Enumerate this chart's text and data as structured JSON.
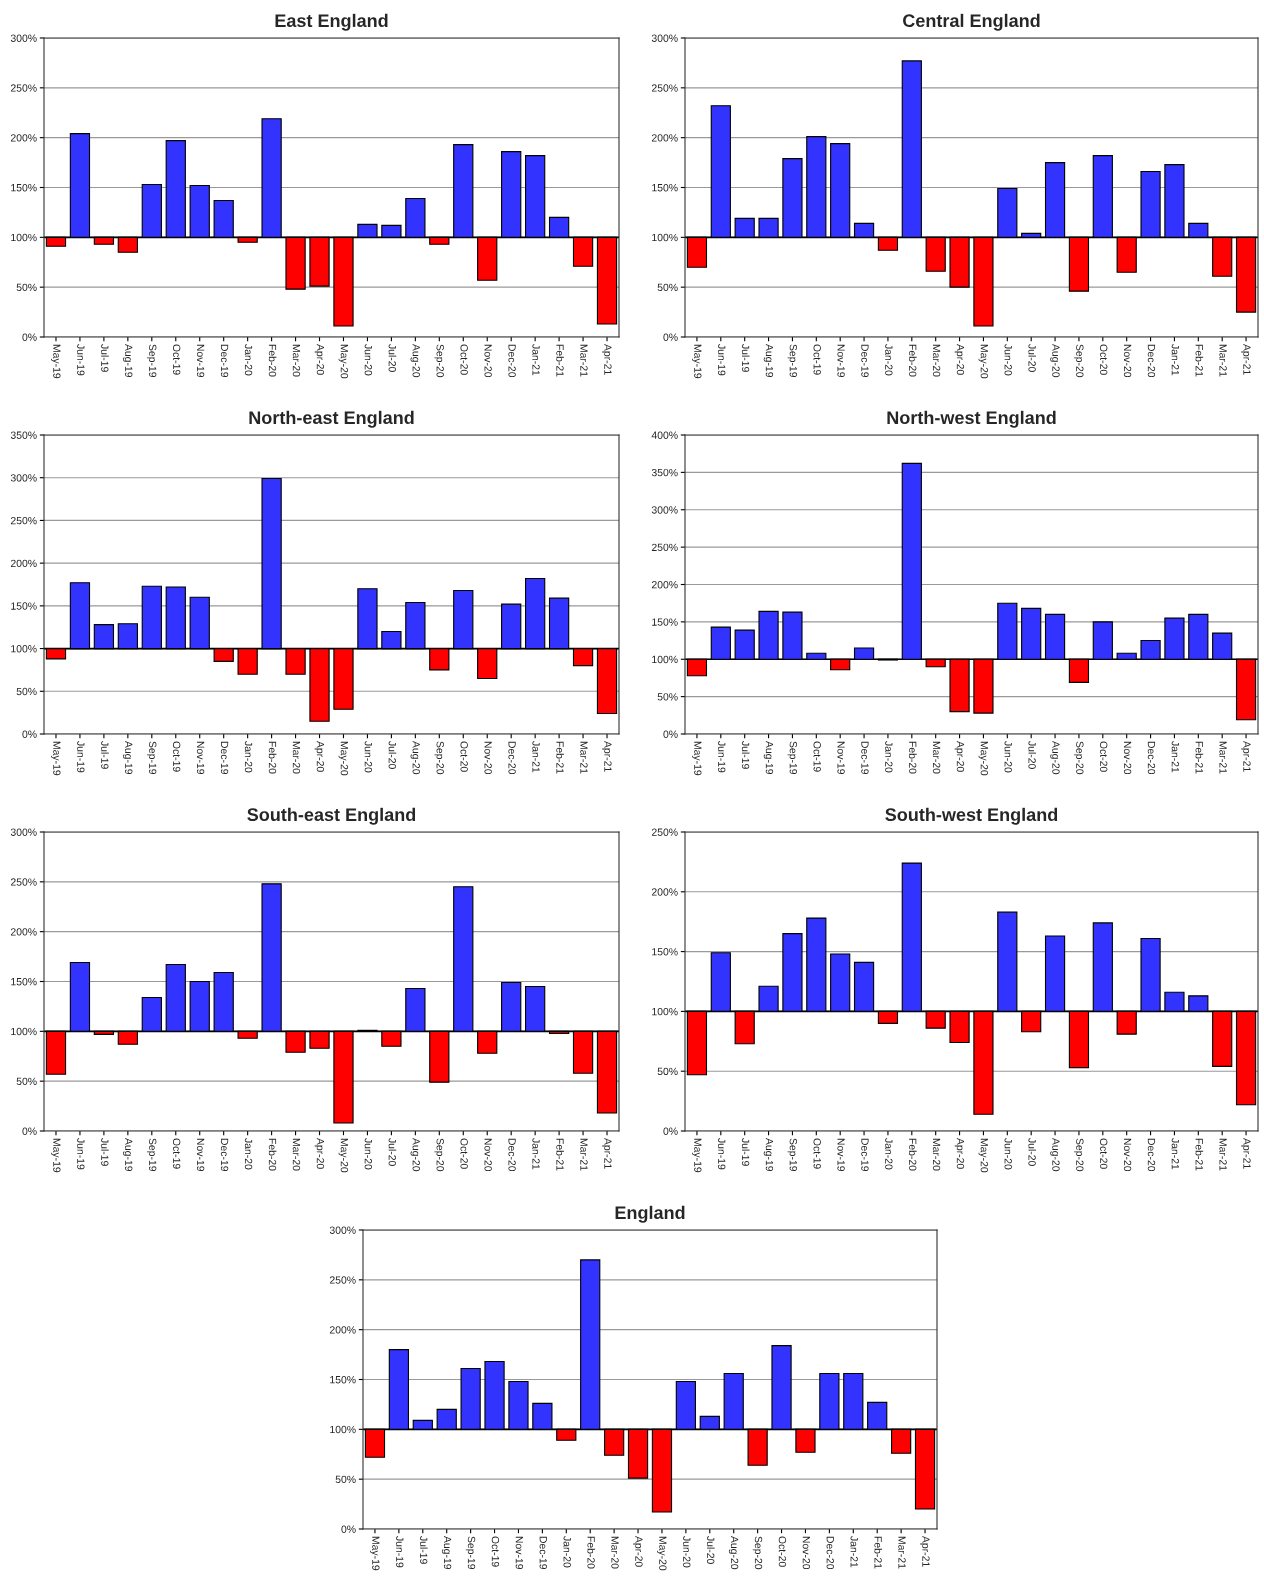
{
  "chart_data": [
    {
      "type": "bar",
      "title": "East England",
      "categories": [
        "May-19",
        "Jun-19",
        "Jul-19",
        "Aug-19",
        "Sep-19",
        "Oct-19",
        "Nov-19",
        "Dec-19",
        "Jan-20",
        "Feb-20",
        "Mar-20",
        "Apr-20",
        "May-20",
        "Jun-20",
        "Jul-20",
        "Aug-20",
        "Sep-20",
        "Oct-20",
        "Nov-20",
        "Dec-20",
        "Jan-21",
        "Feb-21",
        "Mar-21",
        "Apr-21"
      ],
      "base": [
        100,
        100,
        100,
        100,
        100,
        100,
        100,
        100,
        100,
        100,
        100,
        100,
        100,
        100,
        100,
        100,
        100,
        100,
        100,
        100,
        100,
        100,
        100,
        100
      ],
      "values": [
        -9,
        104,
        -7,
        -15,
        53,
        97,
        52,
        37,
        -5,
        119,
        -52,
        -49,
        -89,
        13,
        12,
        39,
        -7,
        93,
        -43,
        86,
        82,
        20,
        -29,
        -87
      ],
      "colors": [
        "#ff0000",
        "#3333ff",
        "#ff0000",
        "#ff0000",
        "#3333ff",
        "#3333ff",
        "#3333ff",
        "#3333ff",
        "#ff0000",
        "#3333ff",
        "#ff0000",
        "#ff0000",
        "#ff0000",
        "#3333ff",
        "#3333ff",
        "#3333ff",
        "#ff0000",
        "#3333ff",
        "#ff0000",
        "#3333ff",
        "#3333ff",
        "#3333ff",
        "#ff0000",
        "#ff0000"
      ],
      "ylim": [
        0,
        300
      ],
      "yticks": [
        {
          "value": 0,
          "label": "0%"
        },
        {
          "value": 50,
          "label": "50%"
        },
        {
          "value": 100,
          "label": "100%"
        },
        {
          "value": 150,
          "label": "150%"
        },
        {
          "value": 200,
          "label": "200%"
        },
        {
          "value": 250,
          "label": "250%"
        },
        {
          "value": 300,
          "label": "300%"
        }
      ],
      "grid": "y",
      "ref_lines": [
        {
          "axis": "y",
          "value": 100,
          "color": "#000000"
        }
      ]
    },
    {
      "type": "bar",
      "title": "Central England",
      "categories": [
        "May-19",
        "Jun-19",
        "Jul-19",
        "Aug-19",
        "Sep-19",
        "Oct-19",
        "Nov-19",
        "Dec-19",
        "Jan-20",
        "Feb-20",
        "Mar-20",
        "Apr-20",
        "May-20",
        "Jun-20",
        "Jul-20",
        "Aug-20",
        "Sep-20",
        "Oct-20",
        "Nov-20",
        "Dec-20",
        "Jan-21",
        "Feb-21",
        "Mar-21",
        "Apr-21"
      ],
      "base": [
        100,
        100,
        100,
        100,
        100,
        100,
        100,
        100,
        100,
        100,
        100,
        100,
        100,
        100,
        100,
        100,
        100,
        100,
        100,
        100,
        100,
        100,
        100,
        100
      ],
      "values": [
        -30,
        132,
        19,
        19,
        79,
        101,
        94,
        14,
        -13,
        177,
        -34,
        -50,
        -89,
        49,
        4,
        75,
        -54,
        82,
        -35,
        66,
        73,
        14,
        -39,
        -75
      ],
      "colors": [
        "#ff0000",
        "#3333ff",
        "#3333ff",
        "#3333ff",
        "#3333ff",
        "#3333ff",
        "#3333ff",
        "#3333ff",
        "#ff0000",
        "#3333ff",
        "#ff0000",
        "#ff0000",
        "#ff0000",
        "#3333ff",
        "#3333ff",
        "#3333ff",
        "#ff0000",
        "#3333ff",
        "#ff0000",
        "#3333ff",
        "#3333ff",
        "#3333ff",
        "#ff0000",
        "#ff0000"
      ],
      "ylim": [
        0,
        300
      ],
      "yticks": [
        {
          "value": 0,
          "label": "0%"
        },
        {
          "value": 50,
          "label": "50%"
        },
        {
          "value": 100,
          "label": "100%"
        },
        {
          "value": 150,
          "label": "150%"
        },
        {
          "value": 200,
          "label": "200%"
        },
        {
          "value": 250,
          "label": "250%"
        },
        {
          "value": 300,
          "label": "300%"
        }
      ],
      "grid": "y",
      "ref_lines": [
        {
          "axis": "y",
          "value": 100,
          "color": "#000000"
        }
      ]
    },
    {
      "type": "bar",
      "title": "North-east England",
      "categories": [
        "May-19",
        "Jun-19",
        "Jul-19",
        "Aug-19",
        "Sep-19",
        "Oct-19",
        "Nov-19",
        "Dec-19",
        "Jan-20",
        "Feb-20",
        "Mar-20",
        "Apr-20",
        "May-20",
        "Jun-20",
        "Jul-20",
        "Aug-20",
        "Sep-20",
        "Oct-20",
        "Nov-20",
        "Dec-20",
        "Jan-21",
        "Feb-21",
        "Mar-21",
        "Apr-21"
      ],
      "base": [
        100,
        100,
        100,
        100,
        100,
        100,
        100,
        100,
        100,
        100,
        100,
        100,
        100,
        100,
        100,
        100,
        100,
        100,
        100,
        100,
        100,
        100,
        100,
        100
      ],
      "values": [
        -12,
        77,
        28,
        29,
        73,
        72,
        60,
        -15,
        -30,
        199,
        -30,
        -85,
        -71,
        70,
        20,
        54,
        -25,
        68,
        -35,
        52,
        82,
        59,
        -20,
        -76
      ],
      "colors": [
        "#ff0000",
        "#3333ff",
        "#3333ff",
        "#3333ff",
        "#3333ff",
        "#3333ff",
        "#3333ff",
        "#ff0000",
        "#ff0000",
        "#3333ff",
        "#ff0000",
        "#ff0000",
        "#ff0000",
        "#3333ff",
        "#3333ff",
        "#3333ff",
        "#ff0000",
        "#3333ff",
        "#ff0000",
        "#3333ff",
        "#3333ff",
        "#3333ff",
        "#ff0000",
        "#ff0000"
      ],
      "ylim": [
        0,
        350
      ],
      "yticks": [
        {
          "value": 0,
          "label": "0%"
        },
        {
          "value": 50,
          "label": "50%"
        },
        {
          "value": 100,
          "label": "100%"
        },
        {
          "value": 150,
          "label": "150%"
        },
        {
          "value": 200,
          "label": "200%"
        },
        {
          "value": 250,
          "label": "250%"
        },
        {
          "value": 300,
          "label": "300%"
        },
        {
          "value": 350,
          "label": "350%"
        }
      ],
      "grid": "y",
      "ref_lines": [
        {
          "axis": "y",
          "value": 100,
          "color": "#000000"
        }
      ]
    },
    {
      "type": "bar",
      "title": "North-west England",
      "categories": [
        "May-19",
        "Jun-19",
        "Jul-19",
        "Aug-19",
        "Sep-19",
        "Oct-19",
        "Nov-19",
        "Dec-19",
        "Jan-20",
        "Feb-20",
        "Mar-20",
        "Apr-20",
        "May-20",
        "Jun-20",
        "Jul-20",
        "Aug-20",
        "Sep-20",
        "Oct-20",
        "Nov-20",
        "Dec-20",
        "Jan-21",
        "Feb-21",
        "Mar-21",
        "Apr-21"
      ],
      "base": [
        100,
        100,
        100,
        100,
        100,
        100,
        100,
        100,
        100,
        100,
        100,
        100,
        100,
        100,
        100,
        100,
        100,
        100,
        100,
        100,
        100,
        100,
        100,
        100
      ],
      "values": [
        -22,
        43,
        39,
        64,
        63,
        8,
        -14,
        15,
        -1,
        262,
        -10,
        -70,
        -72,
        75,
        68,
        60,
        -31,
        50,
        8,
        25,
        55,
        60,
        35,
        -81
      ],
      "colors": [
        "#ff0000",
        "#3333ff",
        "#3333ff",
        "#3333ff",
        "#3333ff",
        "#3333ff",
        "#ff0000",
        "#3333ff",
        "#ff0000",
        "#3333ff",
        "#ff0000",
        "#ff0000",
        "#ff0000",
        "#3333ff",
        "#3333ff",
        "#3333ff",
        "#ff0000",
        "#3333ff",
        "#3333ff",
        "#3333ff",
        "#3333ff",
        "#3333ff",
        "#3333ff",
        "#ff0000"
      ],
      "ylim": [
        0,
        400
      ],
      "yticks": [
        {
          "value": 0,
          "label": "0%"
        },
        {
          "value": 50,
          "label": "50%"
        },
        {
          "value": 100,
          "label": "100%"
        },
        {
          "value": 150,
          "label": "150%"
        },
        {
          "value": 200,
          "label": "200%"
        },
        {
          "value": 250,
          "label": "250%"
        },
        {
          "value": 300,
          "label": "300%"
        },
        {
          "value": 350,
          "label": "350%"
        },
        {
          "value": 400,
          "label": "400%"
        }
      ],
      "grid": "y",
      "ref_lines": [
        {
          "axis": "y",
          "value": 100,
          "color": "#000000"
        }
      ]
    },
    {
      "type": "bar",
      "title": "South-east England",
      "categories": [
        "May-19",
        "Jun-19",
        "Jul-19",
        "Aug-19",
        "Sep-19",
        "Oct-19",
        "Nov-19",
        "Dec-19",
        "Jan-20",
        "Feb-20",
        "Mar-20",
        "Apr-20",
        "May-20",
        "Jun-20",
        "Jul-20",
        "Aug-20",
        "Sep-20",
        "Oct-20",
        "Nov-20",
        "Dec-20",
        "Jan-21",
        "Feb-21",
        "Mar-21",
        "Apr-21"
      ],
      "base": [
        100,
        100,
        100,
        100,
        100,
        100,
        100,
        100,
        100,
        100,
        100,
        100,
        100,
        100,
        100,
        100,
        100,
        100,
        100,
        100,
        100,
        100,
        100,
        100
      ],
      "values": [
        -43,
        69,
        -3,
        -13,
        34,
        67,
        50,
        59,
        -7,
        148,
        -21,
        -17,
        -92,
        1,
        -15,
        43,
        -51,
        145,
        -22,
        49,
        45,
        -2,
        -42,
        -82
      ],
      "colors": [
        "#ff0000",
        "#3333ff",
        "#ff0000",
        "#ff0000",
        "#3333ff",
        "#3333ff",
        "#3333ff",
        "#3333ff",
        "#ff0000",
        "#3333ff",
        "#ff0000",
        "#ff0000",
        "#ff0000",
        "#3333ff",
        "#ff0000",
        "#3333ff",
        "#ff0000",
        "#3333ff",
        "#ff0000",
        "#3333ff",
        "#3333ff",
        "#ff0000",
        "#ff0000",
        "#ff0000"
      ],
      "ylim": [
        0,
        300
      ],
      "yticks": [
        {
          "value": 0,
          "label": "0%"
        },
        {
          "value": 50,
          "label": "50%"
        },
        {
          "value": 100,
          "label": "100%"
        },
        {
          "value": 150,
          "label": "150%"
        },
        {
          "value": 200,
          "label": "200%"
        },
        {
          "value": 250,
          "label": "250%"
        },
        {
          "value": 300,
          "label": "300%"
        }
      ],
      "grid": "y",
      "ref_lines": [
        {
          "axis": "y",
          "value": 100,
          "color": "#000000"
        }
      ]
    },
    {
      "type": "bar",
      "title": "South-west England",
      "categories": [
        "May-19",
        "Jun-19",
        "Jul-19",
        "Aug-19",
        "Sep-19",
        "Oct-19",
        "Nov-19",
        "Dec-19",
        "Jan-20",
        "Feb-20",
        "Mar-20",
        "Apr-20",
        "May-20",
        "Jun-20",
        "Jul-20",
        "Aug-20",
        "Sep-20",
        "Oct-20",
        "Nov-20",
        "Dec-20",
        "Jan-21",
        "Feb-21",
        "Mar-21",
        "Apr-21"
      ],
      "base": [
        100,
        100,
        100,
        100,
        100,
        100,
        100,
        100,
        100,
        100,
        100,
        100,
        100,
        100,
        100,
        100,
        100,
        100,
        100,
        100,
        100,
        100,
        100,
        100
      ],
      "values": [
        -53,
        49,
        -27,
        21,
        65,
        78,
        48,
        41,
        -10,
        124,
        -14,
        -26,
        -86,
        83,
        -17,
        63,
        -47,
        74,
        -19,
        61,
        16,
        13,
        -46,
        -78
      ],
      "colors": [
        "#ff0000",
        "#3333ff",
        "#ff0000",
        "#3333ff",
        "#3333ff",
        "#3333ff",
        "#3333ff",
        "#3333ff",
        "#ff0000",
        "#3333ff",
        "#ff0000",
        "#ff0000",
        "#ff0000",
        "#3333ff",
        "#ff0000",
        "#3333ff",
        "#ff0000",
        "#3333ff",
        "#ff0000",
        "#3333ff",
        "#3333ff",
        "#3333ff",
        "#ff0000",
        "#ff0000"
      ],
      "ylim": [
        0,
        250
      ],
      "yticks": [
        {
          "value": 0,
          "label": "0%"
        },
        {
          "value": 50,
          "label": "50%"
        },
        {
          "value": 100,
          "label": "100%"
        },
        {
          "value": 150,
          "label": "150%"
        },
        {
          "value": 200,
          "label": "200%"
        },
        {
          "value": 250,
          "label": "250%"
        }
      ],
      "grid": "y",
      "ref_lines": [
        {
          "axis": "y",
          "value": 100,
          "color": "#000000"
        }
      ]
    },
    {
      "type": "bar",
      "title": "England",
      "categories": [
        "May-19",
        "Jun-19",
        "Jul-19",
        "Aug-19",
        "Sep-19",
        "Oct-19",
        "Nov-19",
        "Dec-19",
        "Jan-20",
        "Feb-20",
        "Mar-20",
        "Apr-20",
        "May-20",
        "Jun-20",
        "Jul-20",
        "Aug-20",
        "Sep-20",
        "Oct-20",
        "Nov-20",
        "Dec-20",
        "Jan-21",
        "Feb-21",
        "Mar-21",
        "Apr-21"
      ],
      "base": [
        100,
        100,
        100,
        100,
        100,
        100,
        100,
        100,
        100,
        100,
        100,
        100,
        100,
        100,
        100,
        100,
        100,
        100,
        100,
        100,
        100,
        100,
        100,
        100
      ],
      "values": [
        -28,
        80,
        9,
        20,
        61,
        68,
        48,
        26,
        -11,
        170,
        -26,
        -49,
        -83,
        48,
        13,
        56,
        -36,
        84,
        -23,
        56,
        56,
        27,
        -24,
        -80
      ],
      "colors": [
        "#ff0000",
        "#3333ff",
        "#3333ff",
        "#3333ff",
        "#3333ff",
        "#3333ff",
        "#3333ff",
        "#3333ff",
        "#ff0000",
        "#3333ff",
        "#ff0000",
        "#ff0000",
        "#ff0000",
        "#3333ff",
        "#3333ff",
        "#3333ff",
        "#ff0000",
        "#3333ff",
        "#ff0000",
        "#3333ff",
        "#3333ff",
        "#3333ff",
        "#ff0000",
        "#ff0000"
      ],
      "ylim": [
        0,
        300
      ],
      "yticks": [
        {
          "value": 0,
          "label": "0%"
        },
        {
          "value": 50,
          "label": "50%"
        },
        {
          "value": 100,
          "label": "100%"
        },
        {
          "value": 150,
          "label": "150%"
        },
        {
          "value": 200,
          "label": "200%"
        },
        {
          "value": 250,
          "label": "250%"
        },
        {
          "value": 300,
          "label": "300%"
        }
      ],
      "grid": "y",
      "ref_lines": [
        {
          "axis": "y",
          "value": 100,
          "color": "#000000"
        }
      ]
    }
  ]
}
